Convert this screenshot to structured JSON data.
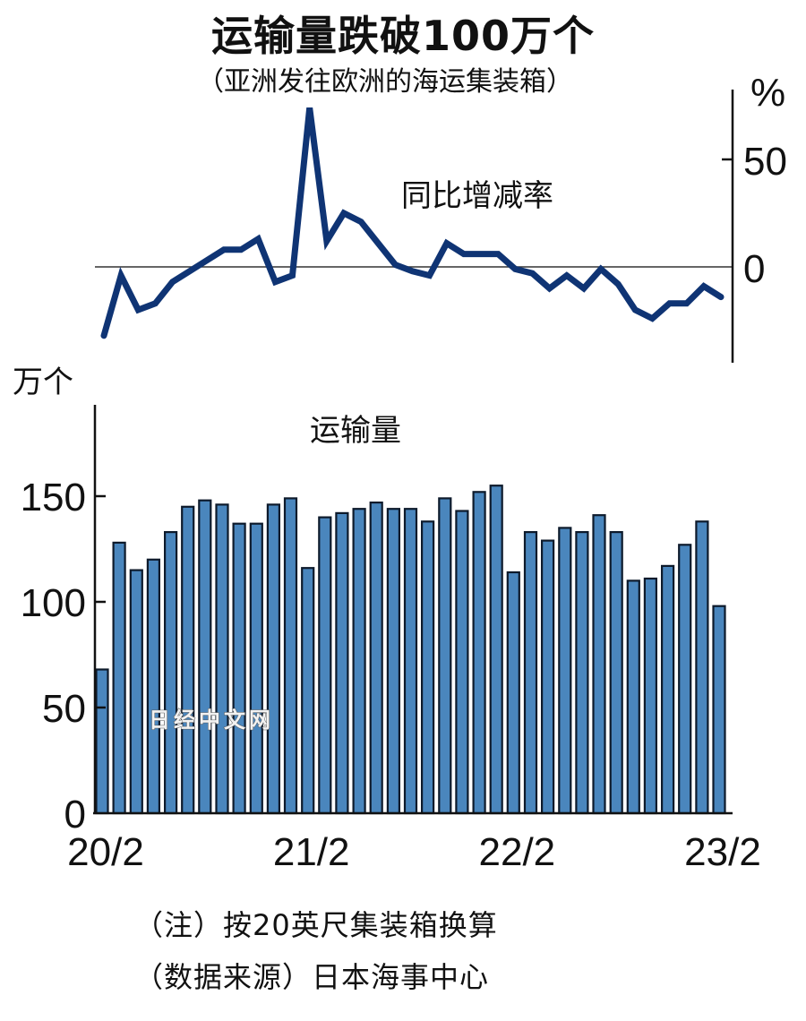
{
  "header": {
    "title": "运输量跌破100万个",
    "subtitle": "（亚洲发往欧洲的海运集装箱）"
  },
  "footer": {
    "note": "（注）按20英尺集装箱换算",
    "source": "（数据来源）日本海事中心"
  },
  "watermark": "日经中文网",
  "colors": {
    "bar_fill": "#4a86bd",
    "bar_stroke": "#0d1a2b",
    "line": "#0f3474",
    "axis": "#111111",
    "zero_line": "#333333"
  },
  "chart_data": [
    {
      "type": "line",
      "title": "同比增减率",
      "ylabel": "%",
      "yticks": [
        0,
        50
      ],
      "ylim": [
        -32,
        75
      ],
      "axis_position": "right",
      "zero_line": true,
      "x": [
        "20/2",
        "20/3",
        "20/4",
        "20/5",
        "20/6",
        "20/7",
        "20/8",
        "20/9",
        "20/10",
        "20/11",
        "20/12",
        "21/1",
        "21/2",
        "21/3",
        "21/4",
        "21/5",
        "21/6",
        "21/7",
        "21/8",
        "21/9",
        "21/10",
        "21/11",
        "21/12",
        "22/1",
        "22/2",
        "22/3",
        "22/4",
        "22/5",
        "22/6",
        "22/7",
        "22/8",
        "22/9",
        "22/10",
        "22/11",
        "22/12",
        "23/1",
        "23/2"
      ],
      "values": [
        -32,
        -4,
        -20,
        -17,
        -7,
        -2,
        3,
        8,
        8,
        13,
        -7,
        -4,
        74,
        12,
        25,
        21,
        11,
        1,
        -2,
        -4,
        11,
        6,
        6,
        6,
        -1,
        -3,
        -10,
        -4,
        -10,
        -1,
        -8,
        -20,
        -24,
        -17,
        -17,
        -9,
        -14
      ]
    },
    {
      "type": "bar",
      "title": "运输量",
      "ylabel": "万个",
      "yticks": [
        0,
        50,
        100,
        150
      ],
      "ylim": [
        0,
        190
      ],
      "xtick_labels": [
        "20/2",
        "21/2",
        "22/2",
        "23/2"
      ],
      "categories": [
        "20/2",
        "20/3",
        "20/4",
        "20/5",
        "20/6",
        "20/7",
        "20/8",
        "20/9",
        "20/10",
        "20/11",
        "20/12",
        "21/1",
        "21/2",
        "21/3",
        "21/4",
        "21/5",
        "21/6",
        "21/7",
        "21/8",
        "21/9",
        "21/10",
        "21/11",
        "21/12",
        "22/1",
        "22/2",
        "22/3",
        "22/4",
        "22/5",
        "22/6",
        "22/7",
        "22/8",
        "22/9",
        "22/10",
        "22/11",
        "22/12",
        "23/1",
        "23/2"
      ],
      "values": [
        68,
        128,
        115,
        120,
        133,
        145,
        148,
        146,
        137,
        137,
        146,
        149,
        116,
        140,
        142,
        144,
        147,
        144,
        144,
        138,
        149,
        143,
        152,
        155,
        114,
        133,
        129,
        135,
        133,
        141,
        133,
        110,
        111,
        117,
        127,
        138,
        98
      ]
    }
  ]
}
